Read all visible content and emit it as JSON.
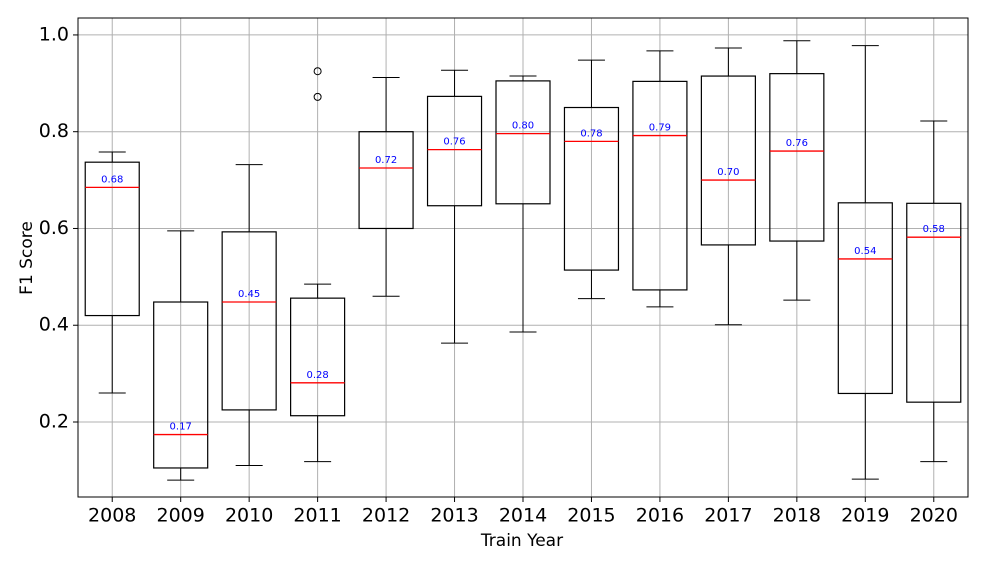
{
  "chart_data": {
    "type": "box",
    "xlabel": "Train Year",
    "ylabel": "F1 Score",
    "ylim": [
      0.045,
      1.035
    ],
    "yticks": [
      "0.2",
      "0.4",
      "0.6",
      "0.8",
      "1.0"
    ],
    "ytick_values": [
      0.2,
      0.4,
      0.6,
      0.8,
      1.0
    ],
    "grid": true,
    "colors": {
      "box": "#000000",
      "median": "#ff0000",
      "median_label": "#0000ff",
      "grid": "#b0b0b0"
    },
    "categories": [
      "2008",
      "2009",
      "2010",
      "2011",
      "2012",
      "2013",
      "2014",
      "2015",
      "2016",
      "2017",
      "2018",
      "2019",
      "2020"
    ],
    "boxes": [
      {
        "whislo": 0.26,
        "q1": 0.42,
        "med": 0.685,
        "q3": 0.737,
        "whishi": 0.758,
        "fliers": [],
        "label": "0.68"
      },
      {
        "whislo": 0.08,
        "q1": 0.105,
        "med": 0.174,
        "q3": 0.448,
        "whishi": 0.595,
        "fliers": [],
        "label": "0.17"
      },
      {
        "whislo": 0.11,
        "q1": 0.225,
        "med": 0.448,
        "q3": 0.593,
        "whishi": 0.732,
        "fliers": [],
        "label": "0.45"
      },
      {
        "whislo": 0.118,
        "q1": 0.213,
        "med": 0.281,
        "q3": 0.456,
        "whishi": 0.485,
        "fliers": [
          0.872,
          0.925
        ],
        "label": "0.28"
      },
      {
        "whislo": 0.46,
        "q1": 0.6,
        "med": 0.725,
        "q3": 0.8,
        "whishi": 0.912,
        "fliers": [],
        "label": "0.72"
      },
      {
        "whislo": 0.363,
        "q1": 0.647,
        "med": 0.763,
        "q3": 0.873,
        "whishi": 0.927,
        "fliers": [],
        "label": "0.76"
      },
      {
        "whislo": 0.386,
        "q1": 0.651,
        "med": 0.796,
        "q3": 0.905,
        "whishi": 0.915,
        "fliers": [],
        "label": "0.80"
      },
      {
        "whislo": 0.455,
        "q1": 0.514,
        "med": 0.78,
        "q3": 0.85,
        "whishi": 0.948,
        "fliers": [],
        "label": "0.78"
      },
      {
        "whislo": 0.438,
        "q1": 0.473,
        "med": 0.792,
        "q3": 0.904,
        "whishi": 0.967,
        "fliers": [],
        "label": "0.79"
      },
      {
        "whislo": 0.401,
        "q1": 0.566,
        "med": 0.7,
        "q3": 0.915,
        "whishi": 0.973,
        "fliers": [],
        "label": "0.70"
      },
      {
        "whislo": 0.452,
        "q1": 0.574,
        "med": 0.76,
        "q3": 0.92,
        "whishi": 0.988,
        "fliers": [],
        "label": "0.76"
      },
      {
        "whislo": 0.082,
        "q1": 0.259,
        "med": 0.537,
        "q3": 0.653,
        "whishi": 0.978,
        "fliers": [],
        "label": "0.54"
      },
      {
        "whislo": 0.118,
        "q1": 0.241,
        "med": 0.582,
        "q3": 0.652,
        "whishi": 0.822,
        "fliers": [],
        "label": "0.58"
      }
    ]
  }
}
